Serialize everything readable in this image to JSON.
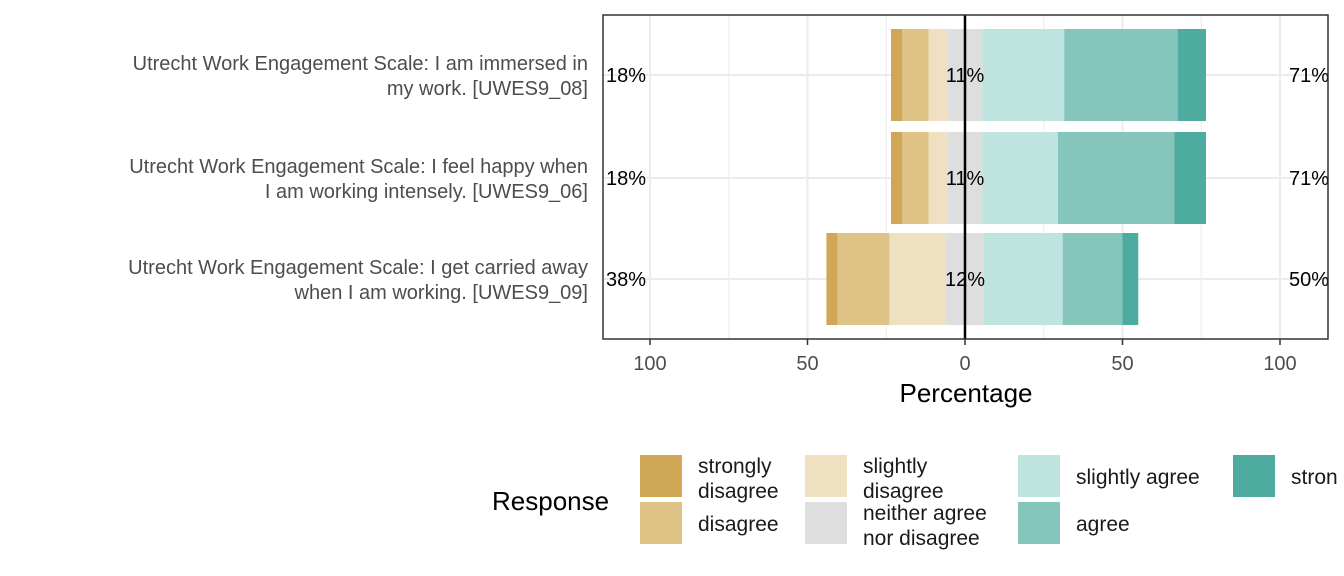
{
  "chart_data": {
    "type": "bar",
    "subtype": "diverging-stacked-likert",
    "title": "",
    "xlabel": "Percentage",
    "ylabel": "",
    "xlim": [
      -100,
      100
    ],
    "x_ticks": [
      -100,
      -50,
      0,
      50,
      100
    ],
    "x_tick_labels": [
      "100",
      "50",
      "0",
      "50",
      "100"
    ],
    "grid": true,
    "legend": {
      "title": "Response",
      "placement": "bottom"
    },
    "categories": [
      "Utrecht Work Engagement Scale: I am immersed in my work. [UWES9_08]",
      "Utrecht Work Engagement Scale: I feel happy when I am working intensely. [UWES9_06]",
      "Utrecht Work Engagement Scale: I get carried away when I am working. [UWES9_09]"
    ],
    "category_label_lines": [
      [
        "Utrecht Work Engagement Scale: I am immersed in",
        "my work. [UWES9_08]"
      ],
      [
        "Utrecht Work Engagement Scale: I feel happy when",
        "I am working intensely. [UWES9_06]"
      ],
      [
        "Utrecht Work Engagement Scale: I get carried away",
        "when I am working. [UWES9_09]"
      ]
    ],
    "series": [
      {
        "name": "strongly disagree",
        "label_lines": [
          "strongly",
          "disagree"
        ],
        "color": "#CFA756",
        "values": [
          3.5,
          3.5,
          3.5
        ]
      },
      {
        "name": "disagree",
        "label_lines": [
          "disagree"
        ],
        "color": "#DFC386",
        "values": [
          8.5,
          8.5,
          16.5
        ]
      },
      {
        "name": "slightly disagree",
        "label_lines": [
          "slightly",
          "disagree"
        ],
        "color": "#EFE0C1",
        "values": [
          6.0,
          6.0,
          18.0
        ]
      },
      {
        "name": "neither agree nor disagree",
        "label_lines": [
          "neither agree",
          "nor disagree"
        ],
        "color": "#DEDEDE",
        "values": [
          11,
          11,
          12
        ]
      },
      {
        "name": "slightly agree",
        "label_lines": [
          "slightly agree"
        ],
        "color": "#BFE3DF",
        "values": [
          26,
          24,
          25
        ]
      },
      {
        "name": "agree",
        "label_lines": [
          "agree"
        ],
        "color": "#86C5BC",
        "values": [
          36,
          37,
          19
        ]
      },
      {
        "name": "strongly agree",
        "label_lines": [
          "stron"
        ],
        "color": "#4DAB9F",
        "values": [
          9,
          10,
          5
        ]
      }
    ],
    "left_pct_labels": [
      "18%",
      "18%",
      "38%"
    ],
    "center_pct_labels": [
      "11%",
      "11%",
      "12%"
    ],
    "right_pct_labels": [
      "71%",
      "71%",
      "50%"
    ]
  }
}
